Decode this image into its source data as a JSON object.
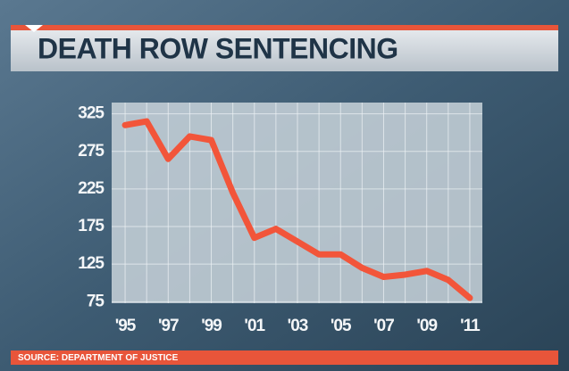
{
  "chart_data": {
    "type": "line",
    "title": "DEATH ROW SENTENCING",
    "source": "SOURCE: DEPARTMENT OF JUSTICE",
    "categories": [
      "'95",
      null,
      "'97",
      null,
      "'99",
      null,
      "'01",
      null,
      "'03",
      null,
      "'05",
      null,
      "'07",
      null,
      "'09",
      null,
      "'11"
    ],
    "values": [
      310,
      315,
      265,
      295,
      290,
      220,
      160,
      172,
      155,
      138,
      138,
      120,
      108,
      111,
      116,
      104,
      80
    ],
    "color": "#f2553a",
    "ylim": [
      73,
      340
    ],
    "yticks": [
      75,
      125,
      175,
      225,
      275,
      325
    ],
    "grid": true
  }
}
